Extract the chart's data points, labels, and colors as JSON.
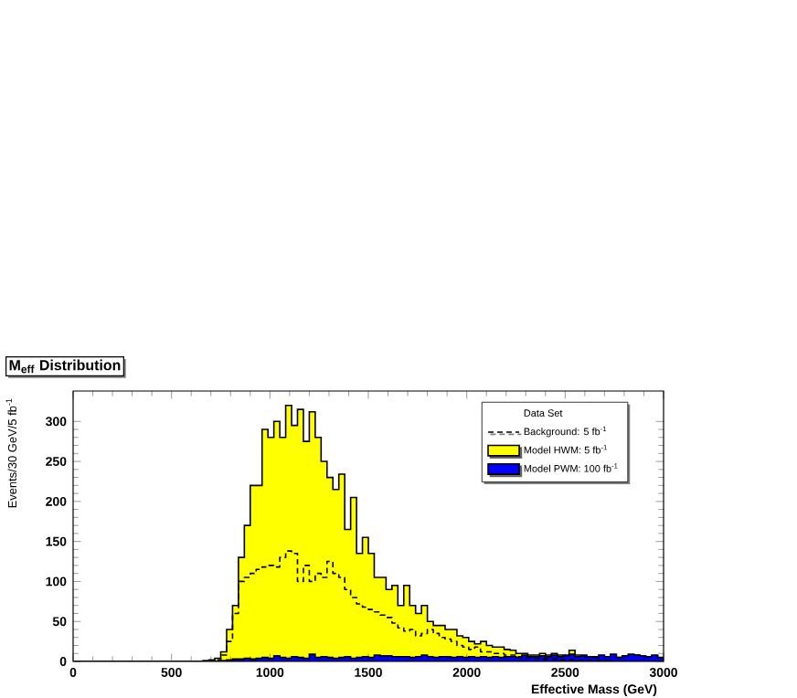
{
  "chart_data": {
    "type": "histogram",
    "title": "M$_{eff}$ Distribution",
    "xlabel": "Effective Mass (GeV)",
    "ylabel": "Events/30 GeV/5 fb$^{-1}$",
    "legend_title": "Data Set",
    "legend": "top right",
    "bins": [
      0,
      30,
      60,
      90,
      120,
      150,
      180,
      210,
      240,
      270,
      300,
      330,
      360,
      390,
      420,
      450,
      480,
      510,
      540,
      570,
      600,
      630,
      660,
      690,
      720,
      750,
      780,
      810,
      840,
      870,
      900,
      930,
      960,
      990,
      1020,
      1050,
      1080,
      1110,
      1140,
      1170,
      1200,
      1230,
      1260,
      1290,
      1320,
      1350,
      1380,
      1410,
      1440,
      1470,
      1500,
      1530,
      1560,
      1590,
      1620,
      1650,
      1680,
      1710,
      1740,
      1770,
      1800,
      1830,
      1860,
      1890,
      1920,
      1950,
      1980,
      2010,
      2040,
      2070,
      2100,
      2130,
      2160,
      2190,
      2220,
      2250,
      2280,
      2310,
      2340,
      2370,
      2400,
      2430,
      2460,
      2490,
      2520,
      2550,
      2580,
      2610,
      2640,
      2670,
      2700,
      2730,
      2760,
      2790,
      2820,
      2850,
      2880,
      2910,
      2940,
      2970,
      3000
    ],
    "xlim": [
      0,
      3000
    ],
    "ylim": [
      0,
      338
    ],
    "xticks": [
      0,
      500,
      1000,
      1500,
      2000,
      2500,
      3000
    ],
    "yticks": [
      0,
      50,
      100,
      150,
      200,
      250,
      300
    ],
    "series": [
      {
        "name": "Background: 5 fb$^{-1}$",
        "type": "step",
        "x": [
          0,
          30,
          60,
          90,
          120,
          150,
          180,
          210,
          240,
          270,
          300,
          330,
          360,
          390,
          420,
          450,
          480,
          510,
          540,
          570,
          600,
          630,
          660,
          690,
          720,
          750,
          780,
          810,
          840,
          870,
          900,
          930,
          960,
          990,
          1020,
          1050,
          1080,
          1110,
          1140,
          1170,
          1200,
          1230,
          1260,
          1290,
          1320,
          1350,
          1380,
          1410,
          1440,
          1470,
          1500,
          1530,
          1560,
          1590,
          1620,
          1650,
          1680,
          1710,
          1740,
          1770,
          1800,
          1830,
          1860,
          1890,
          1920,
          1950,
          1980,
          2010,
          2040,
          2070,
          2100,
          2130,
          2160,
          2190,
          2220,
          2250,
          2280,
          2310,
          2340,
          2370,
          2400,
          2430,
          2460,
          2490,
          2520,
          2550,
          2580,
          2610,
          2640,
          2670,
          2700,
          2730,
          2760,
          2790,
          2820,
          2850,
          2880,
          2910,
          2940,
          2970
        ],
        "line_style": "dashed",
        "color": "#000000",
        "values": [
          0,
          0,
          0,
          0,
          0,
          0,
          0,
          0,
          0,
          0,
          0,
          0,
          0,
          0,
          0,
          0,
          0,
          0,
          0,
          0,
          0,
          0,
          0,
          0,
          2,
          8,
          25,
          60,
          100,
          105,
          110,
          115,
          118,
          120,
          118,
          130,
          138,
          135,
          100,
          120,
          100,
          110,
          105,
          125,
          110,
          105,
          90,
          80,
          72,
          68,
          65,
          62,
          58,
          55,
          48,
          42,
          38,
          40,
          32,
          35,
          40,
          35,
          30,
          28,
          25,
          20,
          18,
          15,
          18,
          12,
          12,
          10,
          10,
          8,
          8,
          6,
          5,
          5,
          4,
          3,
          3,
          3,
          2,
          2,
          2,
          1,
          1,
          1,
          1,
          1,
          1,
          0,
          0,
          0,
          0,
          0,
          0,
          0,
          0,
          0
        ]
      },
      {
        "name": "Model HWM: 5 fb$^{-1}$",
        "color": "#ffff00",
        "values": [
          0,
          0,
          0,
          0,
          0,
          0,
          0,
          0,
          0,
          0,
          0,
          0,
          0,
          0,
          0,
          0,
          0,
          0,
          0,
          0,
          0,
          0,
          1,
          2,
          4,
          12,
          40,
          70,
          130,
          170,
          220,
          220,
          290,
          280,
          300,
          280,
          320,
          295,
          315,
          275,
          312,
          280,
          250,
          230,
          215,
          234,
          165,
          205,
          135,
          155,
          135,
          105,
          105,
          90,
          95,
          70,
          95,
          70,
          60,
          70,
          50,
          45,
          45,
          40,
          40,
          32,
          30,
          25,
          22,
          25,
          20,
          18,
          18,
          15,
          14,
          10,
          10,
          8,
          8,
          10,
          8,
          10,
          8,
          8,
          14,
          8,
          8,
          6,
          6,
          6,
          6,
          8,
          5,
          6,
          6,
          8,
          6,
          5,
          7,
          4
        ]
      },
      {
        "name": "Model PWM: 100 fb$^{-1}$",
        "color": "#0000ff",
        "values": [
          0,
          0,
          0,
          0,
          0,
          0,
          0,
          0,
          0,
          0,
          0,
          0,
          0,
          0,
          0,
          0,
          0,
          0,
          0,
          0,
          0,
          0,
          0,
          0,
          0,
          1,
          2,
          3,
          3,
          4,
          3,
          4,
          5,
          4,
          7,
          5,
          4,
          6,
          5,
          4,
          9,
          5,
          6,
          5,
          4,
          5,
          6,
          4,
          5,
          6,
          5,
          8,
          7,
          7,
          6,
          6,
          6,
          5,
          6,
          8,
          6,
          5,
          6,
          6,
          5,
          6,
          5,
          6,
          5,
          6,
          5,
          6,
          5,
          6,
          6,
          5,
          8,
          6,
          6,
          7,
          6,
          8,
          6,
          7,
          9,
          6,
          7,
          6,
          5,
          8,
          6,
          9,
          5,
          7,
          9,
          8,
          7,
          6,
          8,
          5
        ]
      }
    ]
  }
}
